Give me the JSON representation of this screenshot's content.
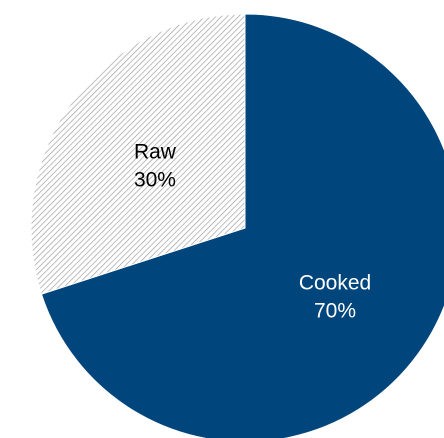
{
  "chart_data": {
    "type": "pie",
    "slices": [
      {
        "label": "Cooked",
        "value": 70,
        "percent_label": "70%",
        "color": "#00457c",
        "fill_style": "solid",
        "text_color": "#ffffff"
      },
      {
        "label": "Raw",
        "value": 30,
        "percent_label": "30%",
        "color": "#ffffff",
        "fill_style": "diagonal-hatch",
        "hatch_color": "#9a9a9a",
        "text_color": "#000000"
      }
    ],
    "start_angle_deg": 0,
    "direction": "clockwise",
    "legend": "none"
  }
}
